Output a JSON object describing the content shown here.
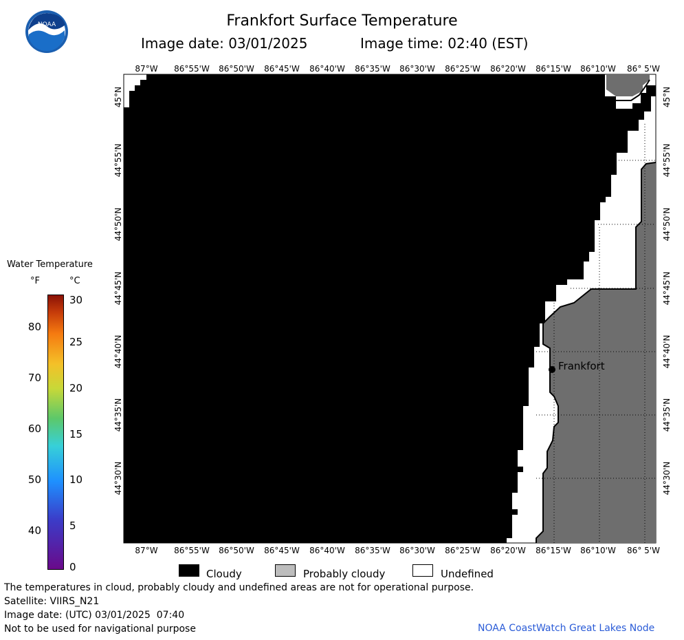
{
  "header": {
    "title": "Frankfort Surface Temperature",
    "image_date": "Image date: 03/01/2025",
    "image_time": "Image time: 02:40 (EST)"
  },
  "logo": {
    "text": "NOAA"
  },
  "legend": {
    "title": "Water Temperature",
    "unit_f": "°F",
    "unit_c": "°C",
    "f_ticks": [
      "80",
      "70",
      "60",
      "50",
      "40"
    ],
    "c_ticks": [
      "30",
      "25",
      "20",
      "15",
      "10",
      "5",
      "0"
    ]
  },
  "map": {
    "lon_labels": [
      "87°W",
      "86°55'W",
      "86°50'W",
      "86°45'W",
      "86°40'W",
      "86°35'W",
      "86°30'W",
      "86°25'W",
      "86°20'W",
      "86°15'W",
      "86°10'W",
      "86° 5'W"
    ],
    "lat_labels": [
      "45°N",
      "44°55'N",
      "44°50'N",
      "44°45'N",
      "44°40'N",
      "44°35'N",
      "44°30'N"
    ],
    "place_label": "Frankfort",
    "colors": {
      "cloudy": "#000000",
      "probably_cloudy": "#6e6e6e",
      "undefined": "#ffffff"
    }
  },
  "key": {
    "cloudy": "Cloudy",
    "probably_cloudy": "Probably cloudy",
    "undefined": "Undefined"
  },
  "footer": {
    "disclaimer": "The temperatures in cloud, probably cloudy and undefined areas are not for operational purpose.",
    "satellite": "Satellite: VIIRS_N21",
    "utc_date": "Image date: (UTC) 03/01/2025  07:40",
    "nav_warning": "Not to be used for navigational purpose",
    "credit": "NOAA CoastWatch Great Lakes Node"
  }
}
